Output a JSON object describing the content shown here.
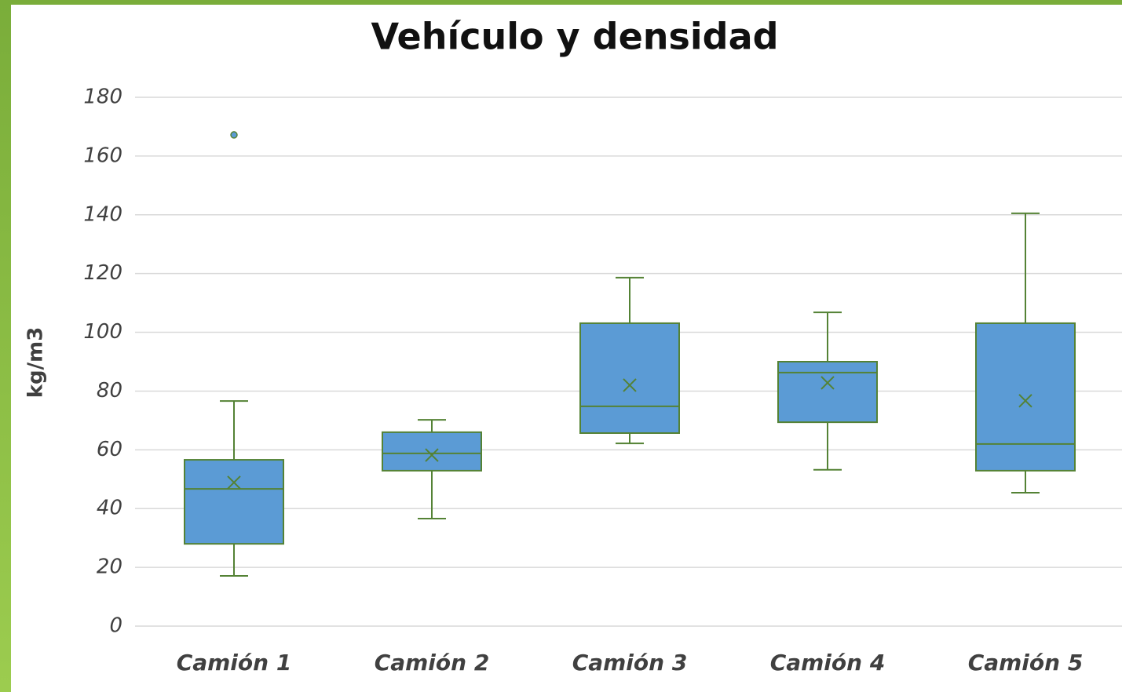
{
  "chart_data": {
    "type": "box",
    "title": "Vehículo y densidad",
    "ylabel": "kg/m3",
    "categories": [
      "Camión 1",
      "Camión 2",
      "Camión 3",
      "Camión 4",
      "Camión 5"
    ],
    "boxes": [
      {
        "min": 17.1,
        "q1": 28,
        "median": 46.7,
        "q3": 56.6,
        "max": 76.6,
        "mean": 48.9,
        "outliers": [
          167.2
        ]
      },
      {
        "min": 36.6,
        "q1": 52.9,
        "median": 58.8,
        "q3": 66,
        "max": 70.2,
        "mean": 58.2,
        "outliers": []
      },
      {
        "min": 62.2,
        "q1": 65.7,
        "median": 74.8,
        "q3": 103.1,
        "max": 118.6,
        "mean": 82,
        "outliers": []
      },
      {
        "min": 53.2,
        "q1": 69.4,
        "median": 86.3,
        "q3": 90,
        "max": 106.8,
        "mean": 82.8,
        "outliers": []
      },
      {
        "min": 45.4,
        "q1": 52.9,
        "median": 62,
        "q3": 103.1,
        "max": 140.5,
        "mean": 76.7,
        "outliers": []
      }
    ],
    "color": "#5b9bd5",
    "line_color": "#548235",
    "ylim": [
      0,
      180
    ],
    "yticks": [
      0,
      20,
      40,
      60,
      80,
      100,
      120,
      140,
      160,
      180
    ],
    "grid": true
  }
}
